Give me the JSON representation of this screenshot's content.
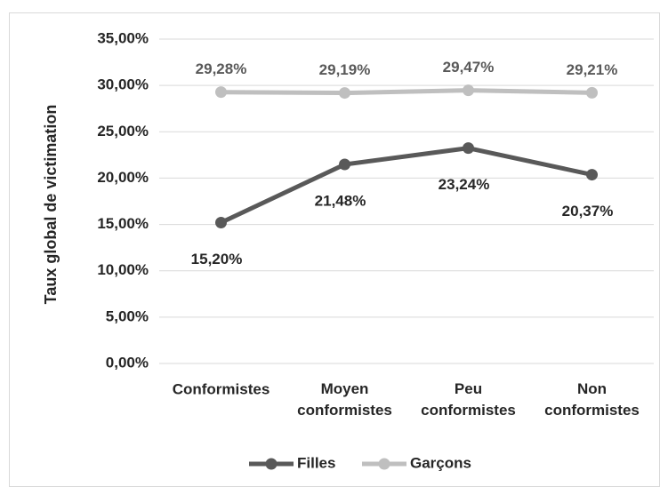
{
  "chart_data": {
    "type": "line",
    "y_label": "Taux global de victimation",
    "categories": [
      "Conformistes",
      "Moyen conformistes",
      "Peu conformistes",
      "Non conformistes"
    ],
    "series": [
      {
        "name": "Filles",
        "color": "#595959",
        "values": [
          15.2,
          21.48,
          23.24,
          20.37
        ],
        "value_labels": [
          "15,20%",
          "21,48%",
          "23,24%",
          "20,37%"
        ]
      },
      {
        "name": "Garçons",
        "color": "#bfbfbf",
        "values": [
          29.28,
          29.19,
          29.47,
          29.21
        ],
        "value_labels": [
          "29,28%",
          "29,19%",
          "29,47%",
          "29,21%"
        ]
      }
    ],
    "ylim": [
      0,
      35
    ],
    "yticks": [
      {
        "value": 0,
        "label": "0,00%"
      },
      {
        "value": 5,
        "label": "5,00%"
      },
      {
        "value": 10,
        "label": "10,00%"
      },
      {
        "value": 15,
        "label": "15,00%"
      },
      {
        "value": 20,
        "label": "20,00%"
      },
      {
        "value": 25,
        "label": "25,00%"
      },
      {
        "value": 30,
        "label": "30,00%"
      },
      {
        "value": 35,
        "label": "35,00%"
      }
    ],
    "grid": true,
    "legend": "bottom"
  }
}
